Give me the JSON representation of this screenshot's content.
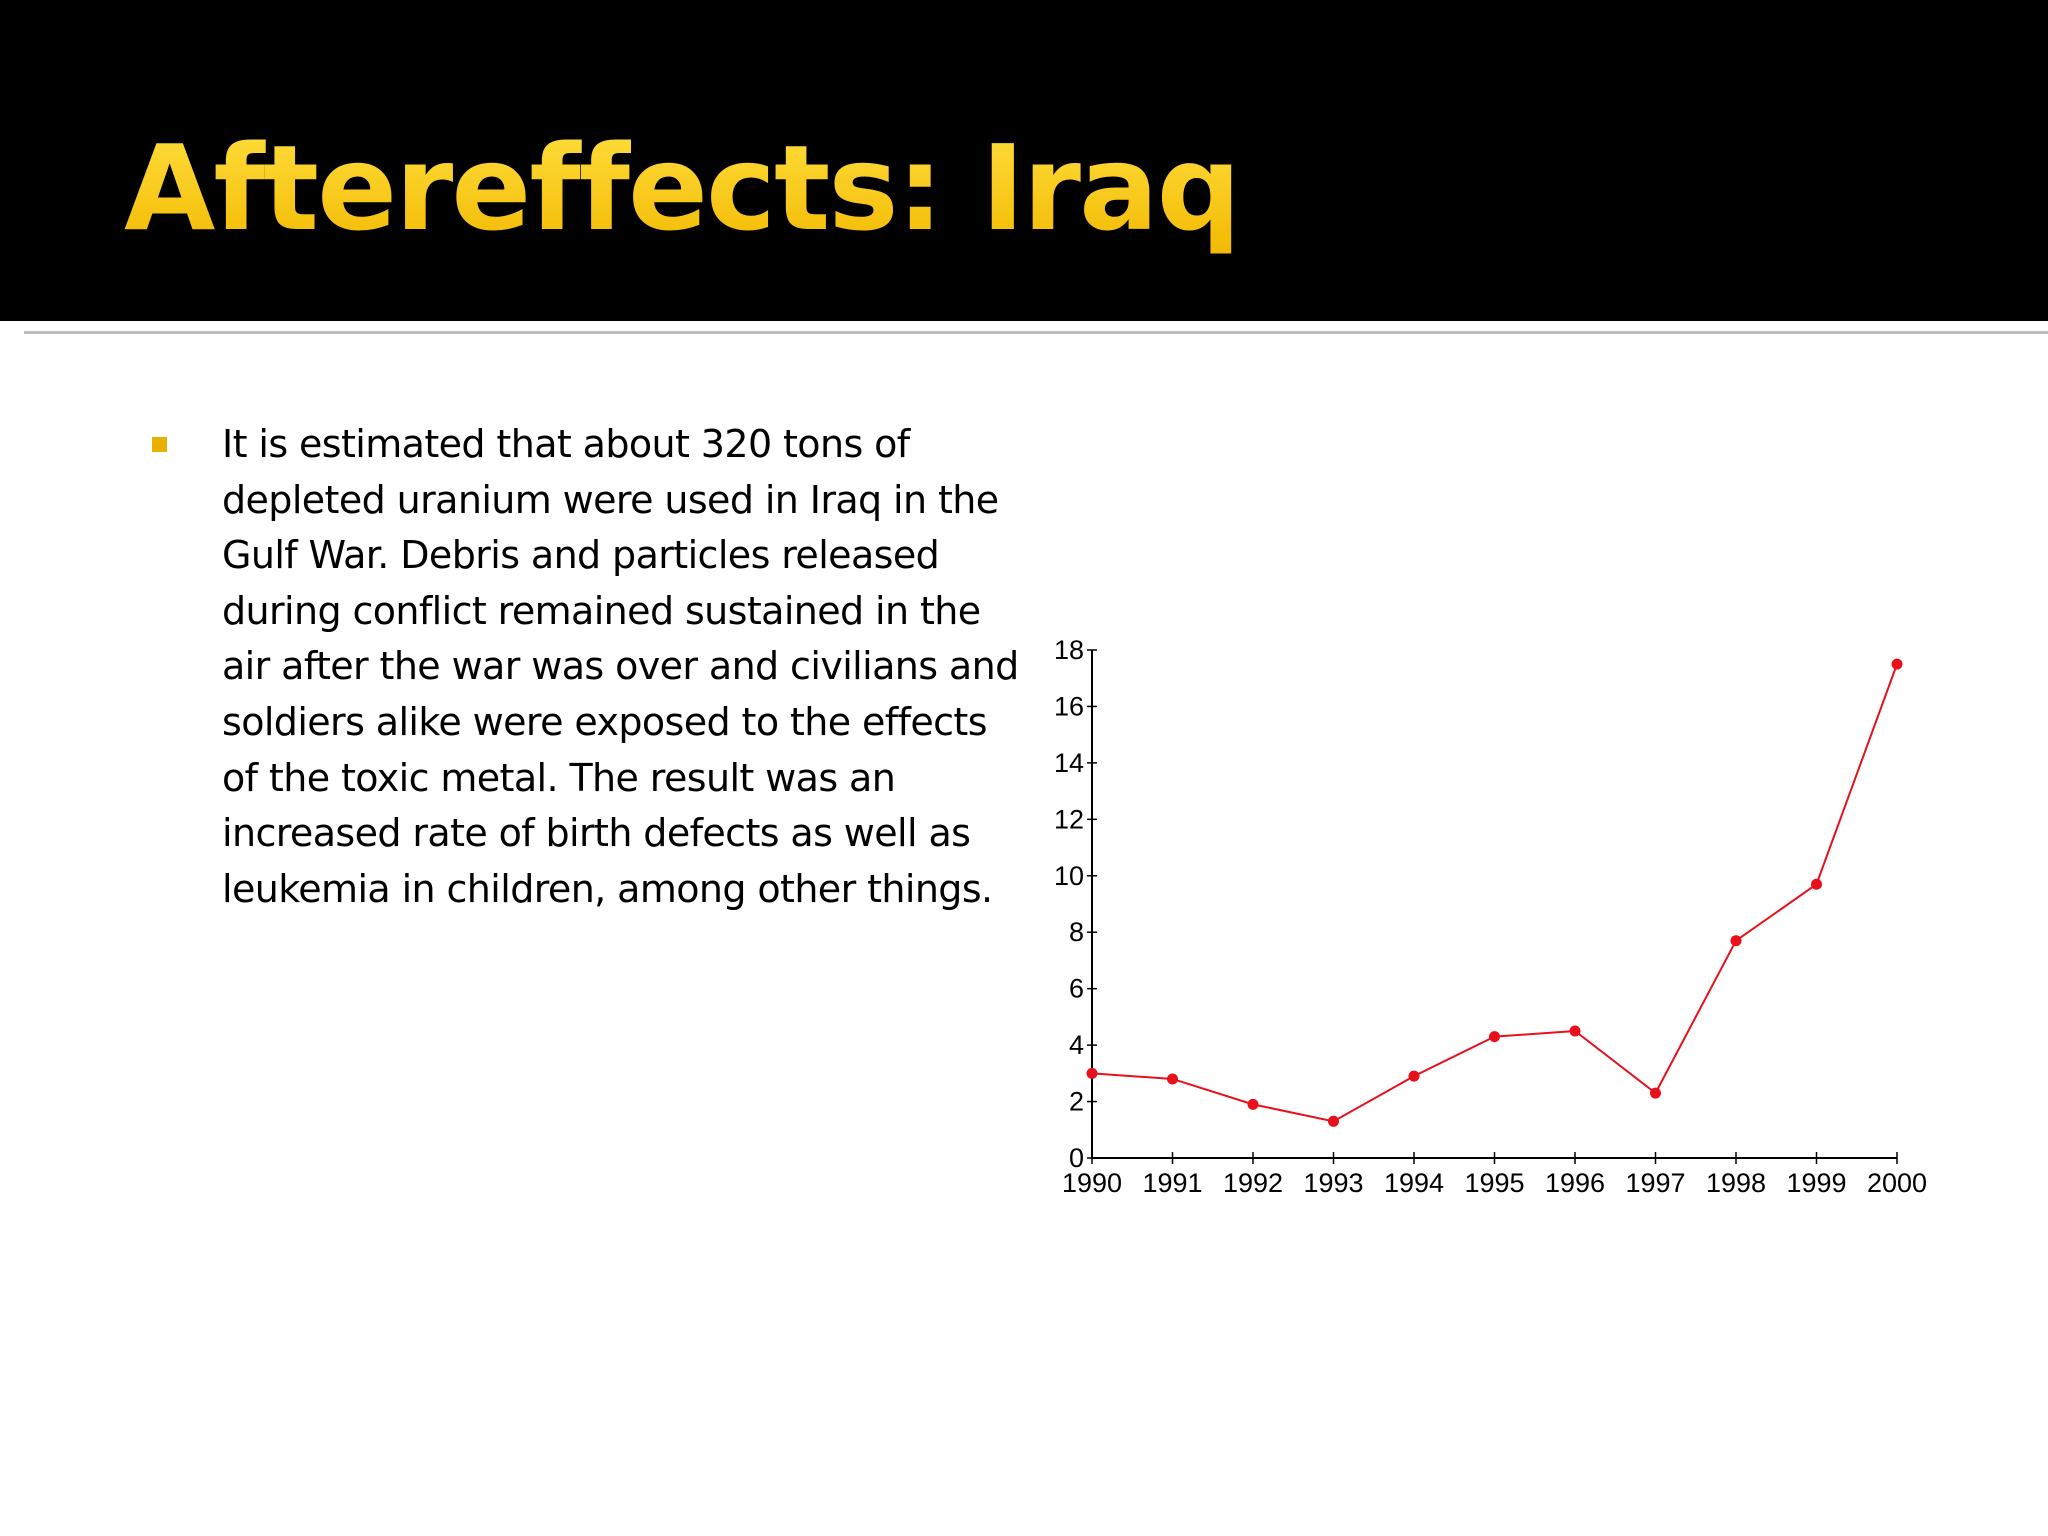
{
  "slide": {
    "title": "Aftereffects: Iraq",
    "bullet": "It is estimated that about 320 tons of depleted uranium were used in Iraq in the Gulf War. Debris and particles released during conflict remained sustained in the air after the war was over and civilians and soldiers alike were exposed to the effects of the toxic metal. The result was an increased rate of birth defects as well as leukemia in children, among other things."
  },
  "colors": {
    "title": "#f5c400",
    "bullet_marker": "#e8b100",
    "series": "#e8101a"
  },
  "chart_data": {
    "type": "line",
    "x": [
      1990,
      1991,
      1992,
      1993,
      1994,
      1995,
      1996,
      1997,
      1998,
      1999,
      2000
    ],
    "categories": [
      "1990",
      "1991",
      "1992",
      "1993",
      "1994",
      "1995",
      "1996",
      "1997",
      "1998",
      "1999",
      "2000"
    ],
    "series": [
      {
        "values": [
          3.0,
          2.8,
          1.9,
          1.3,
          2.9,
          4.3,
          4.5,
          2.3,
          7.7,
          9.7,
          17.5
        ]
      }
    ],
    "title": "",
    "xlabel": "",
    "ylabel": "",
    "ylim": [
      0,
      18
    ],
    "yticks": [
      "0",
      "2",
      "4",
      "6",
      "8",
      "10",
      "12",
      "14",
      "16",
      "18"
    ],
    "grid": false,
    "legend": "none"
  }
}
